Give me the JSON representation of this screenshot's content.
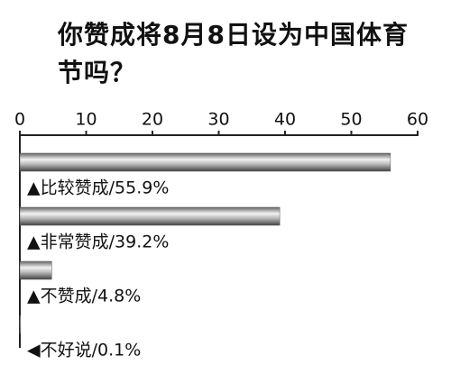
{
  "chart_data": {
    "type": "bar",
    "orientation": "horizontal",
    "title": "你赞成将8月8日设为中国体育节吗？",
    "categories": [
      "▲比较赞成/55.9%",
      "▲非常赞成/39.2%",
      "▲不赞成/4.8%",
      "◀不好说/0.1%"
    ],
    "values": [
      55.9,
      39.2,
      4.8,
      0.1
    ],
    "color": "#555555",
    "xlim": [
      0,
      60
    ],
    "xticks": [
      0,
      10,
      20,
      30,
      40,
      50,
      60
    ]
  }
}
